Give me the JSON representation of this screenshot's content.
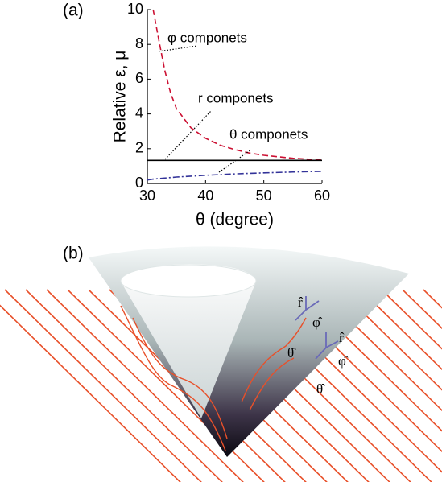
{
  "chart_data": {
    "type": "line",
    "panel_label": "(a)",
    "xlabel": "θ (degree)",
    "ylabel": "Relative ε, μ",
    "x": [
      30,
      31,
      32,
      33,
      34,
      35,
      37.5,
      40,
      42.5,
      45,
      47.5,
      50,
      55,
      60
    ],
    "series": [
      {
        "name": "φ componets",
        "color": "#cc1133",
        "dash": "dashed",
        "values": [
          null,
          10,
          8.2,
          6.5,
          5.2,
          4.3,
          3.2,
          2.6,
          2.2,
          1.95,
          1.75,
          1.62,
          1.45,
          1.35
        ]
      },
      {
        "name": "r componets",
        "color": "#000000",
        "dash": "solid",
        "values": [
          1.33,
          1.33,
          1.33,
          1.33,
          1.33,
          1.33,
          1.33,
          1.33,
          1.33,
          1.33,
          1.33,
          1.33,
          1.33,
          1.33
        ]
      },
      {
        "name": "θ componets",
        "color": "#333399",
        "dash": "dashdot",
        "values": [
          0.2,
          0.25,
          0.28,
          0.31,
          0.34,
          0.37,
          0.42,
          0.47,
          0.51,
          0.55,
          0.58,
          0.61,
          0.66,
          0.7
        ]
      }
    ],
    "xlim": [
      30,
      60
    ],
    "xticks": [
      30,
      40,
      50,
      60
    ],
    "ylim": [
      0,
      10
    ],
    "yticks": [
      0,
      2,
      4,
      6,
      8,
      10
    ]
  },
  "panel_b": {
    "label": "(b)",
    "unit_vectors": [
      "r̂",
      "φ̂",
      "θ̂",
      "r̂",
      "φ̂",
      "θ̂"
    ]
  }
}
